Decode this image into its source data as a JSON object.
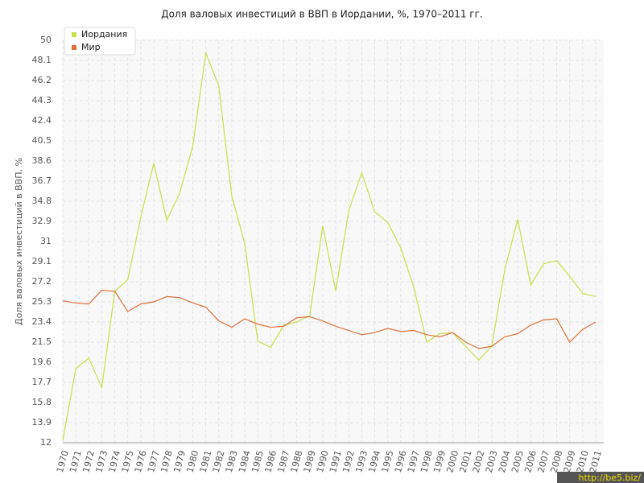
{
  "chart_data": {
    "type": "line",
    "title": "Доля валовых инвестиций в ВВП в Иордании, %, 1970–2011 гг.",
    "y_label": "Доля валовых инвестиций в ВВП, %",
    "categories": [
      "1970",
      "1971",
      "1972",
      "1973",
      "1974",
      "1975",
      "1976",
      "1977",
      "1978",
      "1979",
      "1980",
      "1981",
      "1982",
      "1983",
      "1984",
      "1985",
      "1986",
      "1987",
      "1988",
      "1989",
      "1990",
      "1991",
      "1992",
      "1993",
      "1994",
      "1995",
      "1996",
      "1997",
      "1998",
      "1999",
      "2000",
      "2001",
      "2002",
      "2003",
      "2004",
      "2005",
      "2006",
      "2007",
      "2008",
      "2009",
      "2010",
      "2011"
    ],
    "series": [
      {
        "name": "Иордания",
        "color": "#c8e04a",
        "values": [
          12.2,
          19.0,
          20.0,
          17.2,
          26.3,
          27.4,
          33.3,
          38.4,
          33.0,
          35.6,
          40.0,
          48.8,
          45.7,
          35.3,
          30.8,
          21.6,
          21.0,
          23.1,
          23.4,
          24.0,
          32.5,
          26.3,
          33.9,
          37.5,
          33.8,
          32.8,
          30.4,
          26.7,
          21.5,
          22.3,
          22.4,
          21.1,
          19.8,
          21.1,
          28.3,
          33.1,
          26.9,
          28.9,
          29.2,
          27.7,
          26.1,
          25.8
        ]
      },
      {
        "name": "Мир",
        "color": "#e0703a",
        "values": [
          25.4,
          25.2,
          25.1,
          26.4,
          26.3,
          24.4,
          25.1,
          25.3,
          25.8,
          25.7,
          25.2,
          24.8,
          23.5,
          22.9,
          23.7,
          23.2,
          22.9,
          23.0,
          23.8,
          23.9,
          23.5,
          23.0,
          22.6,
          22.2,
          22.4,
          22.8,
          22.5,
          22.6,
          22.2,
          22.0,
          22.4,
          21.5,
          20.9,
          21.1,
          22.0,
          22.3,
          23.1,
          23.6,
          23.7,
          21.5,
          22.7,
          23.4
        ]
      }
    ],
    "ylim": [
      12,
      50
    ],
    "yticks": [
      12,
      13.9,
      15.8,
      17.7,
      19.6,
      21.5,
      23.4,
      25.3,
      27.2,
      29.1,
      31,
      32.9,
      34.8,
      36.7,
      38.6,
      40.5,
      42.4,
      44.3,
      46.2,
      48.1,
      50
    ],
    "grid": true,
    "legend": "top-left",
    "watermark": "http://be5.biz/"
  }
}
